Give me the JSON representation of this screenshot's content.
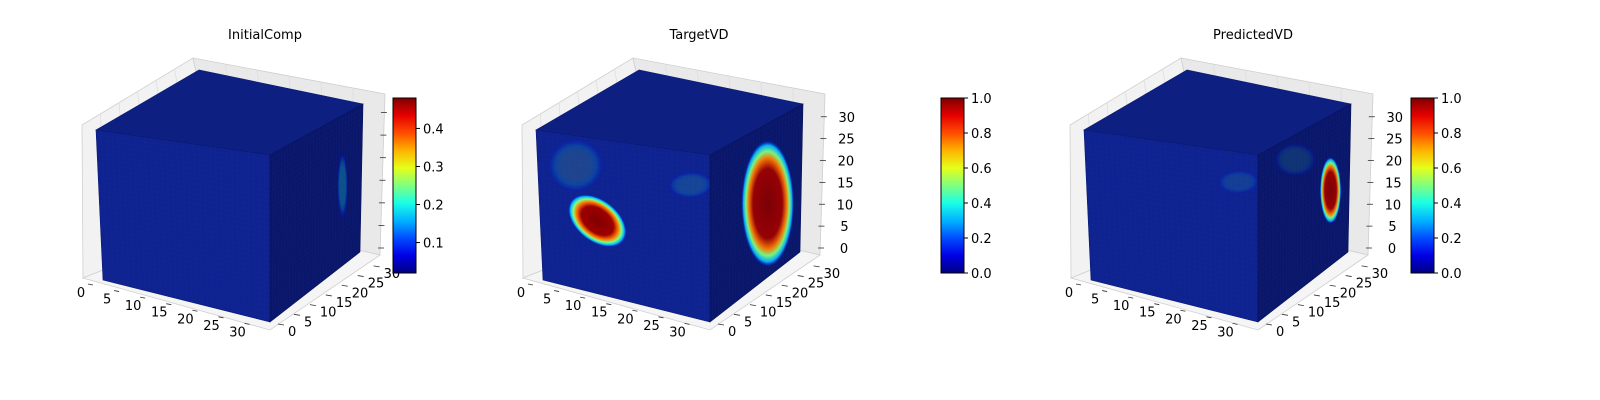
{
  "chart_data": [
    {
      "type": "voxel3d",
      "title": "InitialComp",
      "grid": true,
      "axes": {
        "x": {
          "ticks": [
            0,
            5,
            10,
            15,
            20,
            25,
            30
          ],
          "range": [
            0,
            32
          ]
        },
        "y": {
          "ticks": [
            0,
            5,
            10,
            15,
            20,
            25,
            30
          ],
          "range": [
            0,
            32
          ]
        },
        "z": {
          "ticks": [],
          "range": [
            0,
            32
          ]
        }
      },
      "colormap": "jet",
      "colorbar": {
        "min": 0.02,
        "max": 0.48,
        "ticks": [
          0.1,
          0.2,
          0.3,
          0.4
        ],
        "labels": [
          "0.1",
          "0.2",
          "0.3",
          "0.4"
        ]
      },
      "features": [
        {
          "face": "side",
          "u": 0.78,
          "v": 0.42,
          "ru": 0.05,
          "rv": 0.2,
          "value": 0.4,
          "alpha": 0.25
        }
      ]
    },
    {
      "type": "voxel3d",
      "title": "TargetVD",
      "grid": true,
      "axes": {
        "x": {
          "ticks": [
            0,
            5,
            10,
            15,
            20,
            25,
            30
          ],
          "range": [
            0,
            32
          ]
        },
        "y": {
          "ticks": [
            0,
            5,
            10,
            15,
            20,
            25,
            30
          ],
          "range": [
            0,
            32
          ]
        },
        "z": {
          "ticks": [
            0,
            5,
            10,
            15,
            20,
            25,
            30
          ],
          "range": [
            0,
            32
          ]
        }
      },
      "colormap": "jet",
      "colorbar": {
        "min": 0.0,
        "max": 1.0,
        "ticks": [
          0.0,
          0.2,
          0.4,
          0.6,
          0.8,
          1.0
        ],
        "labels": [
          "0.0",
          "0.2",
          "0.4",
          "0.6",
          "0.8",
          "1.0"
        ]
      },
      "features": [
        {
          "face": "front",
          "u": 0.33,
          "v": 0.55,
          "ru": 0.19,
          "rv": 0.14,
          "tilt": 38,
          "value": 1.0,
          "alpha": 1.0
        },
        {
          "face": "front",
          "u": 0.22,
          "v": 0.2,
          "ru": 0.16,
          "rv": 0.18,
          "value": 0.5,
          "alpha": 0.15
        },
        {
          "face": "front",
          "u": 0.88,
          "v": 0.22,
          "ru": 0.13,
          "rv": 0.09,
          "value": 0.45,
          "alpha": 0.15
        },
        {
          "face": "side",
          "u": 0.62,
          "v": 0.48,
          "ru": 0.25,
          "rv": 0.38,
          "value": 1.0,
          "alpha": 0.95
        }
      ]
    },
    {
      "type": "voxel3d",
      "title": "PredictedVD",
      "grid": true,
      "axes": {
        "x": {
          "ticks": [
            0,
            5,
            10,
            15,
            20,
            25,
            30
          ],
          "range": [
            0,
            32
          ]
        },
        "y": {
          "ticks": [
            0,
            5,
            10,
            15,
            20,
            25,
            30
          ],
          "range": [
            0,
            32
          ]
        },
        "z": {
          "ticks": [
            0,
            5,
            10,
            15,
            20,
            25,
            30
          ],
          "range": [
            0,
            32
          ]
        }
      },
      "colormap": "jet",
      "colorbar": {
        "min": 0.0,
        "max": 1.0,
        "ticks": [
          0.0,
          0.2,
          0.4,
          0.6,
          0.8,
          1.0
        ],
        "labels": [
          "0.0",
          "0.2",
          "0.4",
          "0.6",
          "0.8",
          "1.0"
        ]
      },
      "features": [
        {
          "face": "side",
          "u": 0.78,
          "v": 0.45,
          "ru": 0.1,
          "rv": 0.2,
          "value": 1.0,
          "alpha": 0.95
        },
        {
          "face": "front",
          "u": 0.88,
          "v": 0.2,
          "ru": 0.12,
          "rv": 0.08,
          "value": 0.45,
          "alpha": 0.12
        },
        {
          "face": "side",
          "u": 0.4,
          "v": 0.15,
          "ru": 0.2,
          "rv": 0.1,
          "value": 0.45,
          "alpha": 0.12
        }
      ]
    }
  ]
}
